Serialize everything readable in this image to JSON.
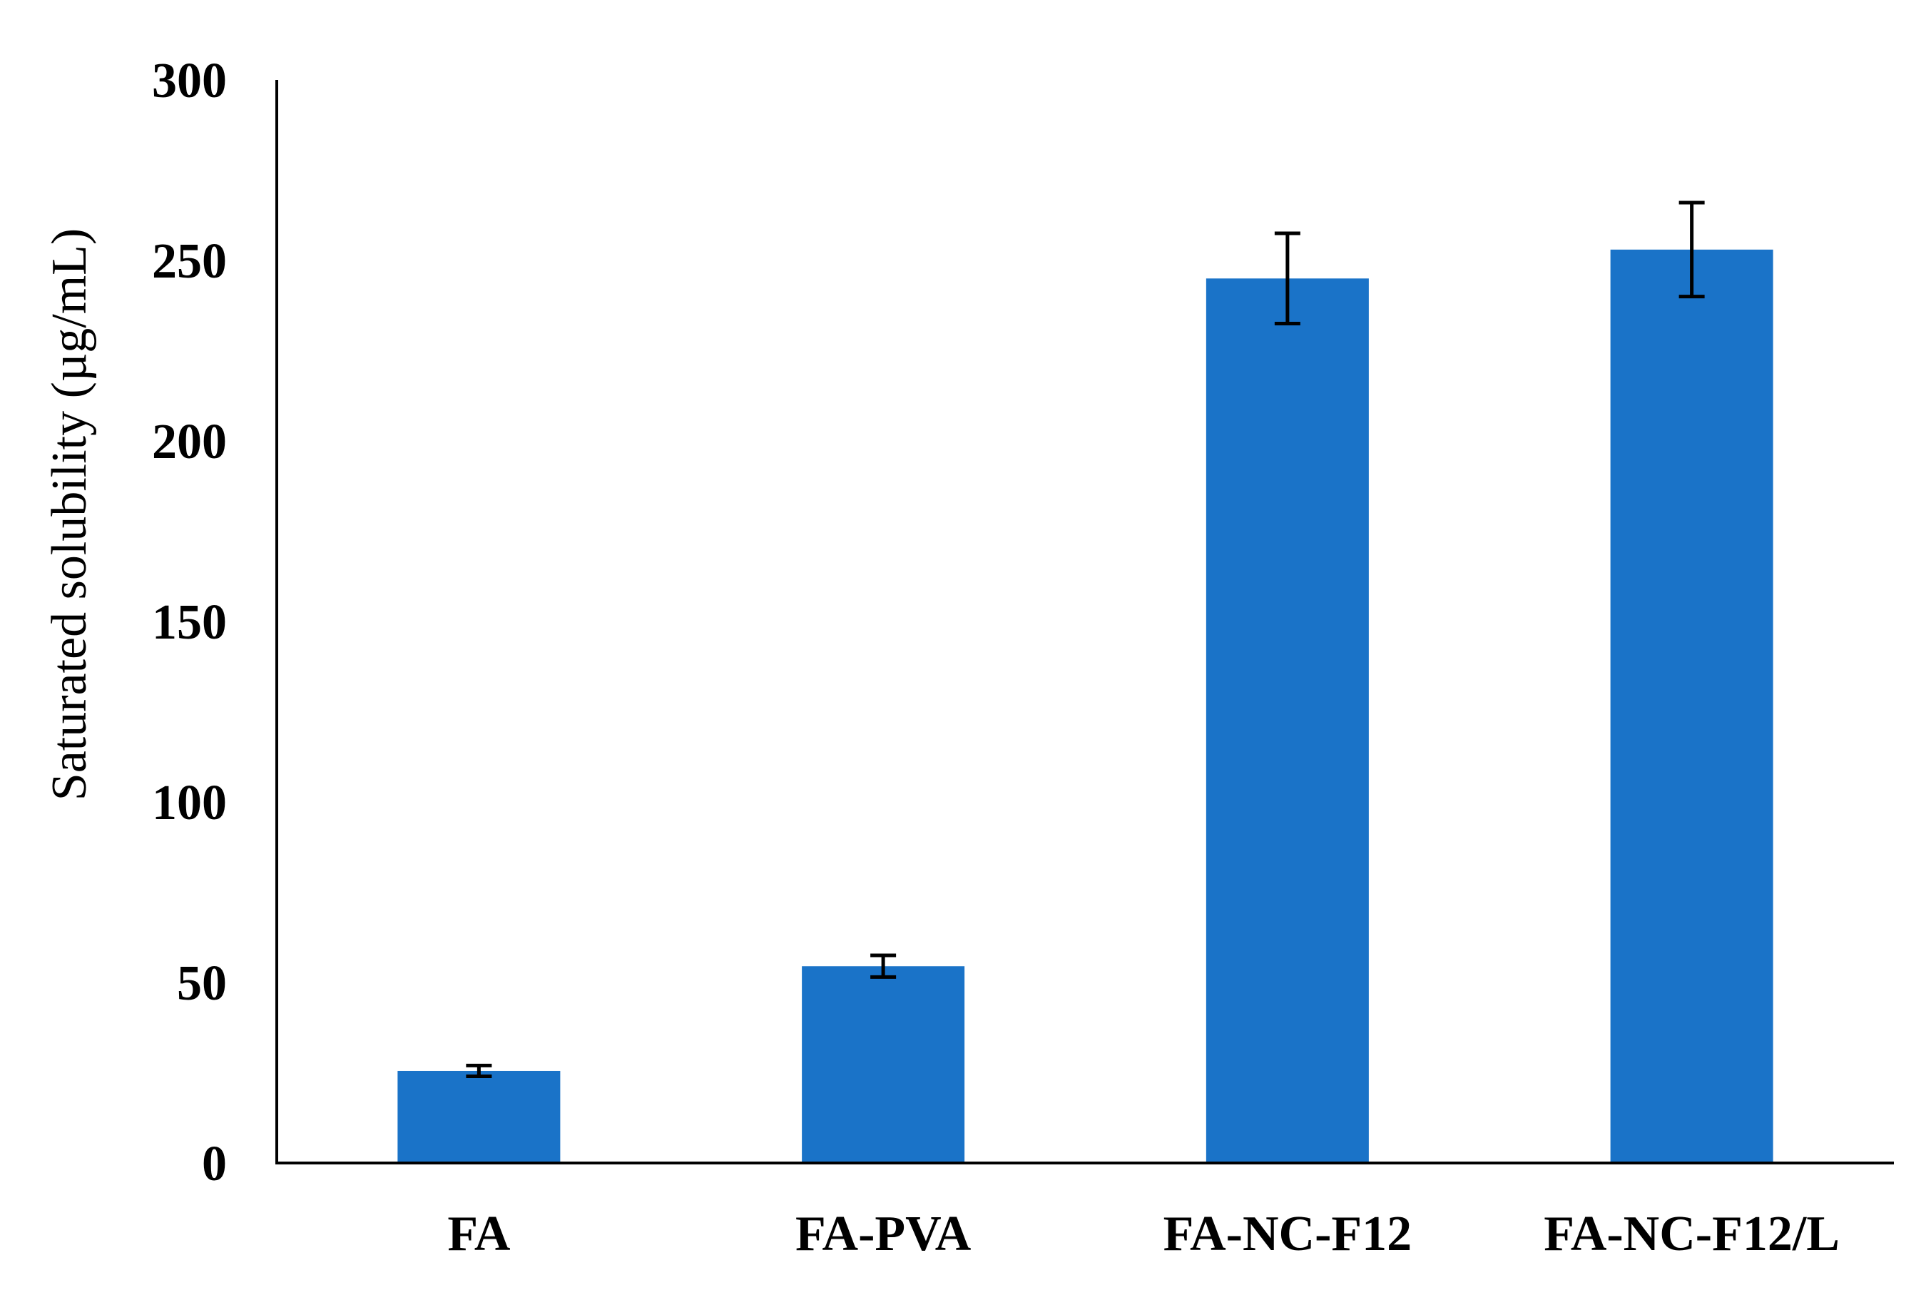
{
  "chart_data": {
    "type": "bar",
    "categories": [
      "FA",
      "FA-PVA",
      "FA-NC-F12",
      "FA-NC-F12/L"
    ],
    "series": [
      {
        "values": [
          25.5,
          54.5,
          245,
          253
        ],
        "error": [
          1.5,
          3,
          12.5,
          13
        ]
      }
    ],
    "title": "",
    "xlabel": "",
    "ylabel": "Saturated solubility (µg/mL)",
    "ylim": [
      0,
      300
    ],
    "yticks": [
      0,
      50,
      100,
      150,
      200,
      250,
      300
    ],
    "ytick_labels": [
      "0",
      "50",
      "100",
      "150",
      "200",
      "250",
      "300"
    ],
    "grid": false,
    "legend": "none",
    "bar_color": "#1a73c8",
    "error_color": "#000000"
  }
}
